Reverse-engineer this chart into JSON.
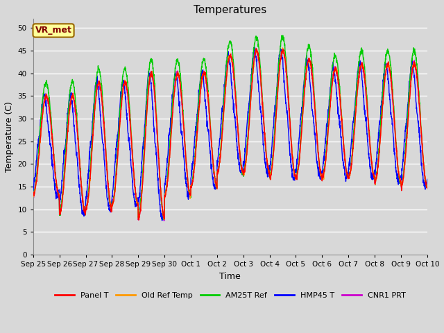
{
  "title": "Temperatures",
  "xlabel": "Time",
  "ylabel": "Temperature (C)",
  "annotation": "VR_met",
  "ylim": [
    0,
    52
  ],
  "yticks": [
    0,
    5,
    10,
    15,
    20,
    25,
    30,
    35,
    40,
    45,
    50
  ],
  "x_labels": [
    "Sep 25",
    "Sep 26",
    "Sep 27",
    "Sep 28",
    "Sep 29",
    "Sep 30",
    "Oct 1",
    "Oct 2",
    "Oct 3",
    "Oct 4",
    "Oct 5",
    "Oct 6",
    "Oct 7",
    "Oct 8",
    "Oct 9",
    "Oct 10"
  ],
  "legend_entries": [
    "Panel T",
    "Old Ref Temp",
    "AM25T Ref",
    "HMP45 T",
    "CNR1 PRT"
  ],
  "legend_colors": [
    "#ff0000",
    "#ff9900",
    "#00cc00",
    "#0000ff",
    "#cc00cc"
  ],
  "background_color": "#d8d8d8",
  "plot_bg_color": "#d8d8d8",
  "grid_color": "#ffffff",
  "n_days": 15,
  "n_points_per_day": 144,
  "base_mins": [
    13,
    9,
    10,
    11,
    8,
    13,
    15,
    18,
    18,
    17,
    17,
    17,
    17,
    16,
    15
  ],
  "base_maxs": [
    35,
    35,
    38,
    38,
    40,
    40,
    40,
    44,
    45,
    45,
    43,
    41,
    42,
    42,
    42
  ],
  "am25t_extra_max": 3,
  "am25t_extra_min": 0,
  "hmp45_phase": 0.08,
  "figsize": [
    6.4,
    4.8
  ],
  "dpi": 100
}
